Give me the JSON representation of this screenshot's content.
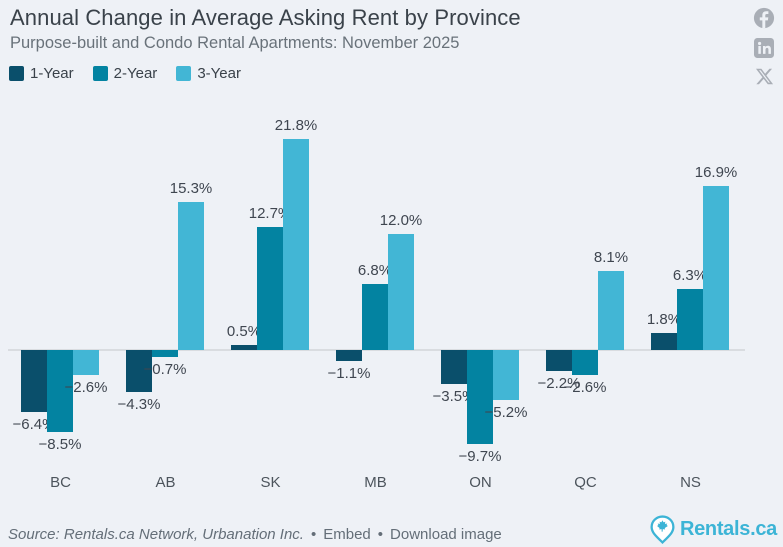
{
  "header": {
    "title": "Annual Change in Average Asking Rent by Province",
    "subtitle": "Purpose-built and Condo Rental Apartments: November 2025"
  },
  "chart_data": {
    "type": "bar",
    "title": "Annual Change in Average Asking Rent by Province",
    "subtitle": "Purpose-built and Condo Rental Apartments: November 2025",
    "categories": [
      "BC",
      "AB",
      "SK",
      "MB",
      "ON",
      "QC",
      "NS"
    ],
    "series": [
      {
        "name": "1-Year",
        "color": "#0a4f6b",
        "values": [
          -6.4,
          -4.3,
          0.5,
          -1.1,
          -3.5,
          -2.2,
          1.8
        ]
      },
      {
        "name": "2-Year",
        "color": "#0383a1",
        "values": [
          -8.5,
          -0.7,
          12.7,
          6.8,
          -9.7,
          -2.6,
          6.3
        ]
      },
      {
        "name": "3-Year",
        "color": "#42b6d5",
        "values": [
          -2.6,
          15.3,
          21.8,
          12.0,
          -5.2,
          8.1,
          16.9
        ]
      }
    ],
    "value_suffix": "%",
    "data_labels": true,
    "legend_position": "top-left",
    "ylim": [
      -10.5,
      23
    ],
    "grid": false
  },
  "social": {
    "facebook_icon": "facebook",
    "linkedin_icon": "linkedin",
    "x_icon": "x-twitter",
    "icon_color": "#a9aeb6"
  },
  "footer": {
    "source": "Source: Rentals.ca Network, Urbanation Inc.",
    "bullet": "•",
    "embed_label": "Embed",
    "download_label": "Download image",
    "logo_text": "Rentals.ca",
    "logo_color": "#3cb4d6"
  },
  "colors": {
    "background": "#eef1f6",
    "title": "#3a424a",
    "subtitle": "#69727a",
    "value_label": "#3f4650",
    "axis_label": "#4c545c",
    "axis_line": "#d9dce0",
    "footer_text": "#646e78"
  }
}
